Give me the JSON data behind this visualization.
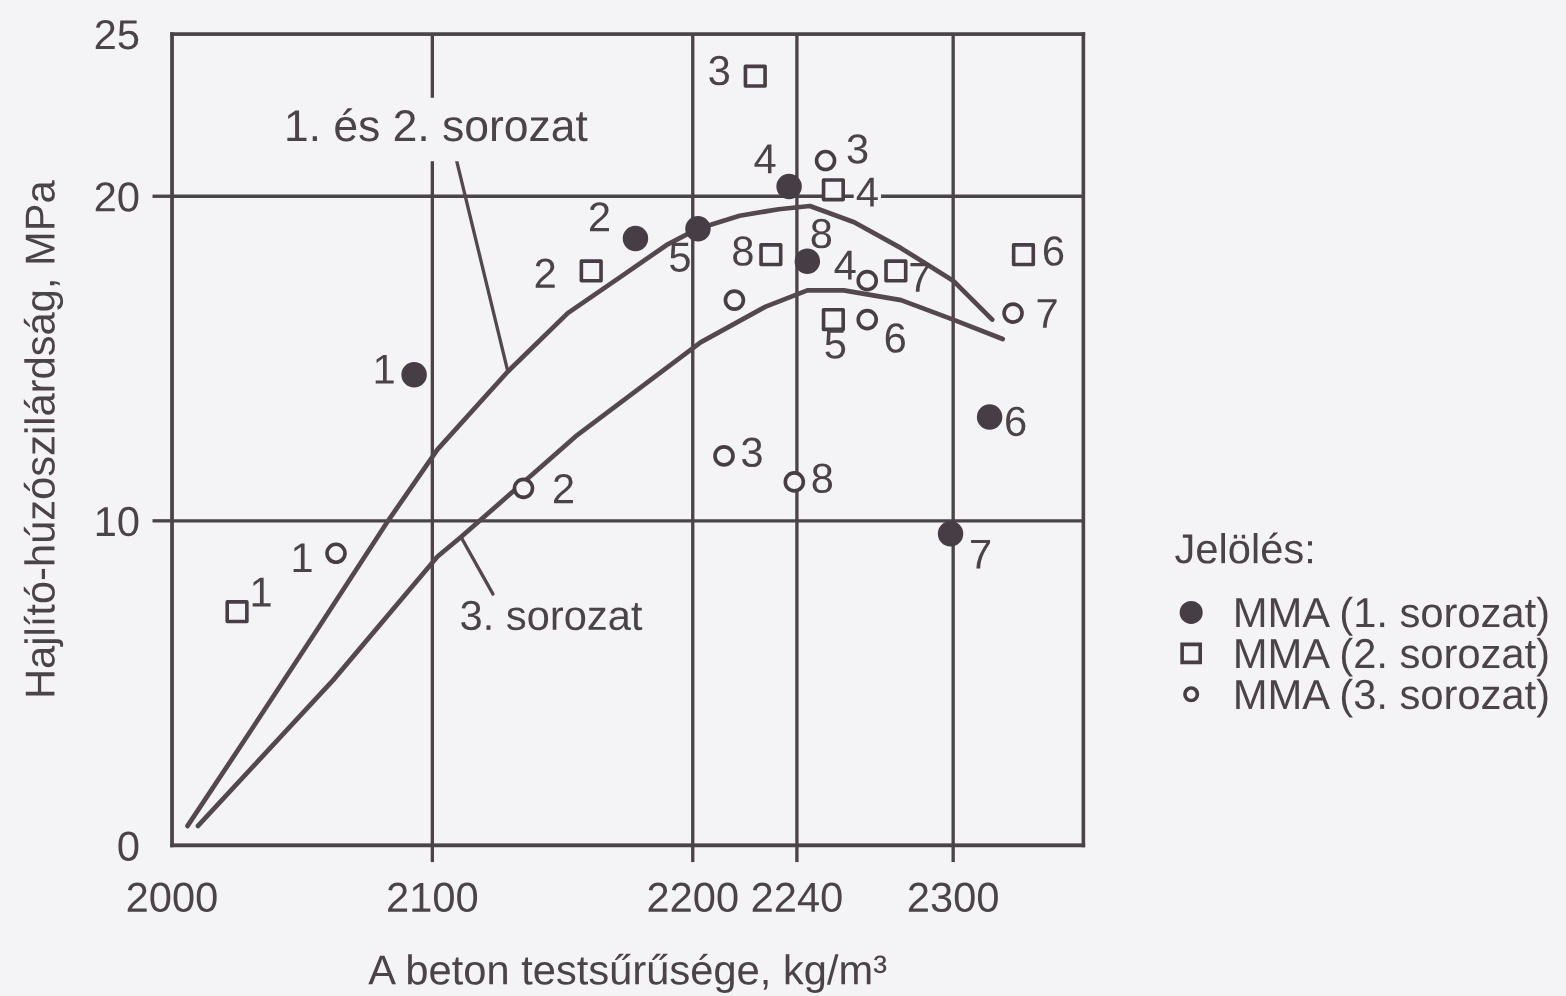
{
  "chart_data": {
    "type": "scatter",
    "xlabel": "A beton testsűrűsége, kg/m³",
    "ylabel": "Hajlító-húzószilárdság, MPa",
    "legend_title": "Jelölés:",
    "xlim": [
      2000,
      2350
    ],
    "ylim": [
      0,
      25
    ],
    "xticks": [
      2000,
      2100,
      2200,
      2240,
      2300
    ],
    "yticks": [
      0,
      10,
      20,
      25
    ],
    "grid": true,
    "legend": "right",
    "series": [
      {
        "name": "MMA (1. sorozat)",
        "marker": "circle",
        "color": "#463e44",
        "x": [
          2093,
          2178,
          2237,
          2202,
          2314,
          2299,
          2244
        ],
        "values": [
          14.5,
          18.7,
          20.3,
          19.0,
          13.2,
          9.6,
          18.0
        ]
      },
      {
        "name": "MMA (2. sorozat)",
        "marker": "square",
        "color": "#463e44",
        "x": [
          2025,
          2161,
          2224,
          2254,
          2254,
          2327,
          2278,
          2230
        ],
        "values": [
          7.2,
          17.7,
          23.7,
          20.2,
          16.2,
          18.2,
          17.7,
          18.2
        ]
      },
      {
        "name": "MMA (3. sorozat)",
        "marker": "circle",
        "color": "#463e44",
        "x": [
          2063,
          2135,
          2212,
          2251,
          2267,
          2216,
          2267,
          2323,
          2239
        ],
        "values": [
          9.0,
          11.0,
          12.0,
          21.1,
          17.4,
          16.8,
          16.2,
          16.4,
          11.2
        ]
      },
      {
        "name": "1. és 2. sorozat",
        "type": "line",
        "marker": "none",
        "line_style": "solid",
        "color": "#54484f",
        "x": [
          2006,
          2030,
          2057,
          2083,
          2102,
          2129,
          2152,
          2172,
          2190,
          2202,
          2218,
          2233,
          2245,
          2262,
          2280,
          2300,
          2315
        ],
        "values": [
          0.6,
          3.5,
          6.8,
          10.0,
          12.2,
          14.6,
          16.4,
          17.5,
          18.5,
          19.0,
          19.4,
          19.6,
          19.7,
          19.2,
          18.4,
          17.4,
          16.2
        ]
      },
      {
        "name": "3. sorozat",
        "type": "line",
        "marker": "none",
        "line_style": "solid",
        "color": "#54484f",
        "x": [
          2010,
          2062,
          2102,
          2111,
          2121,
          2155,
          2203,
          2228,
          2244,
          2258,
          2280,
          2300,
          2319
        ],
        "values": [
          0.6,
          5.1,
          8.9,
          9.5,
          10.2,
          12.6,
          15.5,
          16.6,
          17.1,
          17.1,
          16.8,
          16.2,
          15.6
        ]
      }
    ],
    "annotations": [
      {
        "text": "1",
        "x": 2093,
        "y": 14.5
      },
      {
        "text": "2",
        "x": 2178,
        "y": 18.7
      },
      {
        "text": "4",
        "x": 2237,
        "y": 20.3
      },
      {
        "text": "5",
        "x": 2202,
        "y": 19.0
      },
      {
        "text": "6",
        "x": 2314,
        "y": 13.2
      },
      {
        "text": "7",
        "x": 2299,
        "y": 9.6
      },
      {
        "text": "8",
        "x": 2244,
        "y": 18.0
      },
      {
        "text": "1",
        "x": 2025,
        "y": 7.2
      },
      {
        "text": "2",
        "x": 2161,
        "y": 17.7
      },
      {
        "text": "3",
        "x": 2224,
        "y": 23.7
      },
      {
        "text": "4",
        "x": 2254,
        "y": 20.2
      },
      {
        "text": "5",
        "x": 2254,
        "y": 16.2
      },
      {
        "text": "6",
        "x": 2327,
        "y": 18.2
      },
      {
        "text": "7",
        "x": 2278,
        "y": 17.7
      },
      {
        "text": "8",
        "x": 2230,
        "y": 18.2
      },
      {
        "text": "1",
        "x": 2063,
        "y": 9.0
      },
      {
        "text": "2",
        "x": 2135,
        "y": 11.0
      },
      {
        "text": "3",
        "x": 2212,
        "y": 12.0
      },
      {
        "text": "3",
        "x": 2251,
        "y": 21.1
      },
      {
        "text": "4",
        "x": 2267,
        "y": 17.4
      },
      {
        "text": "6",
        "x": 2267,
        "y": 16.2
      },
      {
        "text": "7",
        "x": 2323,
        "y": 16.4
      },
      {
        "text": "8",
        "x": 2239,
        "y": 11.2
      }
    ]
  }
}
